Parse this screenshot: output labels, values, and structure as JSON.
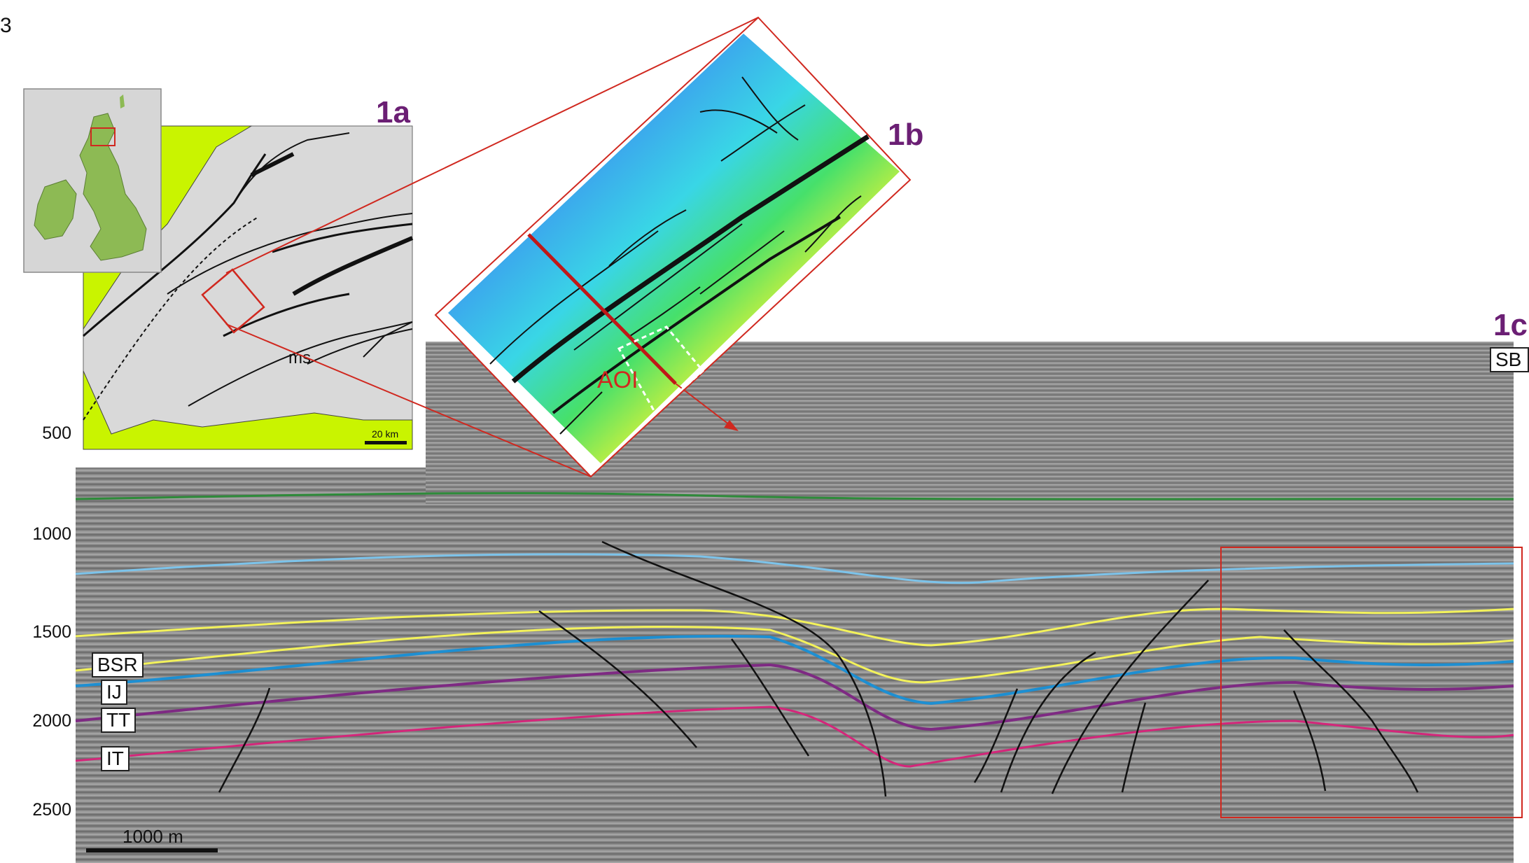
{
  "figure_number": "3",
  "panels": {
    "a": "1a",
    "b": "1b",
    "c": "1c"
  },
  "map_1a": {
    "region_label": "ms",
    "scale_bar": "20 km"
  },
  "map_1b": {
    "area_label": "AOI"
  },
  "seismic_1c": {
    "depth_ticks": [
      "500",
      "1000",
      "1500",
      "2000",
      "2500"
    ],
    "horizon_labels": [
      "BSR",
      "IJ",
      "TT",
      "IT"
    ],
    "right_edge_label": "SB",
    "scale_bar": "1000 m"
  },
  "colors": {
    "panel_label": "#6b1f74",
    "outline_red": "#d0281f",
    "horizon_green": "#2e8b3a",
    "horizon_lightblue": "#7cc3ea",
    "horizon_yellow": "#f3f25a",
    "horizon_blue": "#1d8fd2",
    "horizon_purple": "#7e2a83",
    "horizon_magenta": "#d4267a"
  }
}
